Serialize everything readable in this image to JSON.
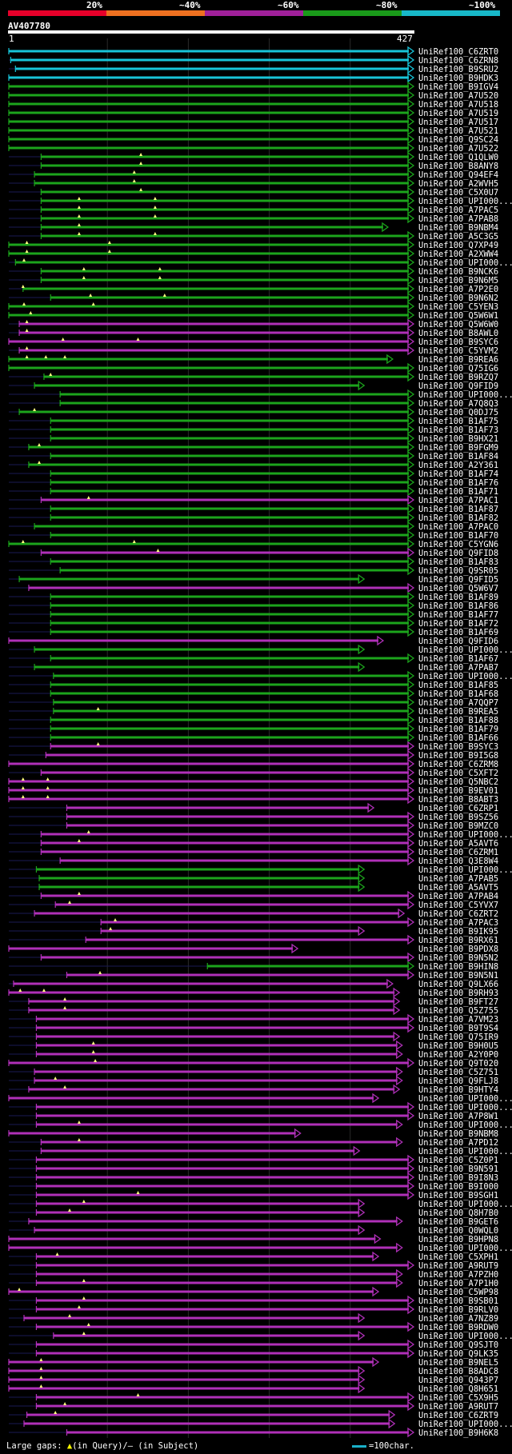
{
  "legend": [
    {
      "label": "20%",
      "color": "#e6002a"
    },
    {
      "label": "~40%",
      "color": "#ee7020"
    },
    {
      "label": "~60%",
      "color": "#a0209a"
    },
    {
      "label": "~80%",
      "color": "#1a9a1a"
    },
    {
      "label": "~100%",
      "color": "#18b8c8"
    }
  ],
  "query": {
    "name": "AV407780",
    "start": "1",
    "end": "427"
  },
  "colors": {
    "cyan": "#18c4d8",
    "green": "#1ca41c",
    "magenta": "#b030b8",
    "gap": "#1a1a55",
    "mark": "#ffff80"
  },
  "hits": [
    {
      "name": "UniRef100_C6ZRT0",
      "c": "cyan",
      "s": 1,
      "e": 427
    },
    {
      "name": "UniRef100_C6ZRN8",
      "c": "cyan",
      "s": 3,
      "e": 427
    },
    {
      "name": "UniRef100_B9SRU2",
      "c": "cyan",
      "s": 8,
      "e": 427
    },
    {
      "name": "UniRef100_B9HDK3",
      "c": "cyan",
      "s": 1,
      "e": 427
    },
    {
      "name": "UniRef100_B9IGV4",
      "c": "green",
      "s": 1,
      "e": 427
    },
    {
      "name": "UniRef100_A7U520",
      "c": "green",
      "s": 1,
      "e": 427
    },
    {
      "name": "UniRef100_A7U518",
      "c": "green",
      "s": 1,
      "e": 427
    },
    {
      "name": "UniRef100_A7U519",
      "c": "green",
      "s": 1,
      "e": 427
    },
    {
      "name": "UniRef100_A7U517",
      "c": "green",
      "s": 1,
      "e": 427
    },
    {
      "name": "UniRef100_A7U521",
      "c": "green",
      "s": 1,
      "e": 427
    },
    {
      "name": "UniRef100_Q9SC24",
      "c": "green",
      "s": 1,
      "e": 427
    },
    {
      "name": "UniRef100_A7U522",
      "c": "green",
      "s": 1,
      "e": 427
    },
    {
      "name": "UniRef100_Q1QLW0",
      "c": "green",
      "s": 35,
      "e": 427,
      "m": [
        140
      ]
    },
    {
      "name": "UniRef100_B8ANY8",
      "c": "green",
      "s": 35,
      "e": 427,
      "m": [
        140
      ]
    },
    {
      "name": "UniRef100_Q94EF4",
      "c": "green",
      "s": 28,
      "e": 427,
      "m": [
        133
      ]
    },
    {
      "name": "UniRef100_A2WVH5",
      "c": "green",
      "s": 28,
      "e": 427,
      "m": [
        133
      ]
    },
    {
      "name": "UniRef100_C5X0U7",
      "c": "green",
      "s": 35,
      "e": 427,
      "m": [
        140
      ]
    },
    {
      "name": "UniRef100_UPI000...",
      "c": "green",
      "s": 35,
      "e": 427,
      "m": [
        75,
        155
      ]
    },
    {
      "name": "UniRef100_A7PAC5",
      "c": "green",
      "s": 35,
      "e": 427,
      "m": [
        75,
        155
      ]
    },
    {
      "name": "UniRef100_A7PAB8",
      "c": "green",
      "s": 35,
      "e": 427,
      "m": [
        75,
        155
      ]
    },
    {
      "name": "UniRef100_B9NBM4",
      "c": "green",
      "s": 35,
      "e": 400,
      "m": [
        75
      ]
    },
    {
      "name": "UniRef100_A5C3G5",
      "c": "green",
      "s": 35,
      "e": 427,
      "m": [
        75,
        155
      ]
    },
    {
      "name": "UniRef100_Q7XP49",
      "c": "green",
      "s": 1,
      "e": 427,
      "m": [
        20,
        107
      ]
    },
    {
      "name": "UniRef100_A2XWW4",
      "c": "green",
      "s": 1,
      "e": 427,
      "m": [
        20,
        107
      ]
    },
    {
      "name": "UniRef100_UPI000...",
      "c": "green",
      "s": 8,
      "e": 427,
      "m": [
        17
      ]
    },
    {
      "name": "UniRef100_B9NCK6",
      "c": "green",
      "s": 35,
      "e": 427,
      "m": [
        80,
        160
      ]
    },
    {
      "name": "UniRef100_B9N6M5",
      "c": "green",
      "s": 35,
      "e": 427,
      "m": [
        80,
        160
      ]
    },
    {
      "name": "UniRef100_A7P2E0",
      "c": "green",
      "s": 16,
      "e": 427,
      "m": [
        16
      ]
    },
    {
      "name": "UniRef100_B9N6N2",
      "c": "green",
      "s": 45,
      "e": 427,
      "m": [
        87,
        165
      ]
    },
    {
      "name": "UniRef100_C5YEN3",
      "c": "green",
      "s": 1,
      "e": 427,
      "m": [
        17,
        90
      ]
    },
    {
      "name": "UniRef100_Q5W6W1",
      "c": "green",
      "s": 1,
      "e": 427,
      "m": [
        24
      ]
    },
    {
      "name": "UniRef100_Q5W6W0",
      "c": "magenta",
      "s": 12,
      "e": 427,
      "m": [
        20
      ]
    },
    {
      "name": "UniRef100_B8AWL0",
      "c": "magenta",
      "s": 12,
      "e": 427,
      "m": [
        20
      ]
    },
    {
      "name": "UniRef100_B9SYC6",
      "c": "magenta",
      "s": 1,
      "e": 427,
      "m": [
        58,
        137
      ]
    },
    {
      "name": "UniRef100_C5YVM2",
      "c": "magenta",
      "s": 12,
      "e": 427,
      "m": [
        20
      ]
    },
    {
      "name": "UniRef100_B9REA6",
      "c": "green",
      "s": 1,
      "e": 405,
      "m": [
        20,
        40,
        60
      ]
    },
    {
      "name": "UniRef100_Q75IG6",
      "c": "green",
      "s": 1,
      "e": 427
    },
    {
      "name": "UniRef100_B9RZQ7",
      "c": "green",
      "s": 38,
      "e": 427,
      "m": [
        45
      ]
    },
    {
      "name": "UniRef100_Q9FID9",
      "c": "green",
      "s": 28,
      "e": 375
    },
    {
      "name": "UniRef100_UPI000...",
      "c": "green",
      "s": 55,
      "e": 427
    },
    {
      "name": "UniRef100_A7Q8Q3",
      "c": "green",
      "s": 55,
      "e": 427
    },
    {
      "name": "UniRef100_Q0DJ75",
      "c": "green",
      "s": 12,
      "e": 427,
      "m": [
        28
      ]
    },
    {
      "name": "UniRef100_B1AF75",
      "c": "green",
      "s": 45,
      "e": 427
    },
    {
      "name": "UniRef100_B1AF73",
      "c": "green",
      "s": 45,
      "e": 427
    },
    {
      "name": "UniRef100_B9HX21",
      "c": "green",
      "s": 45,
      "e": 427
    },
    {
      "name": "UniRef100_B9FGM9",
      "c": "green",
      "s": 22,
      "e": 427,
      "m": [
        33
      ]
    },
    {
      "name": "UniRef100_B1AF84",
      "c": "green",
      "s": 45,
      "e": 427
    },
    {
      "name": "UniRef100_A2Y361",
      "c": "green",
      "s": 22,
      "e": 427,
      "m": [
        33
      ]
    },
    {
      "name": "UniRef100_B1AF74",
      "c": "green",
      "s": 45,
      "e": 427
    },
    {
      "name": "UniRef100_B1AF76",
      "c": "green",
      "s": 45,
      "e": 427
    },
    {
      "name": "UniRef100_B1AF71",
      "c": "green",
      "s": 45,
      "e": 427
    },
    {
      "name": "UniRef100_A7PAC1",
      "c": "magenta",
      "s": 35,
      "e": 427,
      "m": [
        85
      ]
    },
    {
      "name": "UniRef100_B1AF87",
      "c": "green",
      "s": 45,
      "e": 427
    },
    {
      "name": "UniRef100_B1AF82",
      "c": "green",
      "s": 45,
      "e": 427
    },
    {
      "name": "UniRef100_A7PAC0",
      "c": "green",
      "s": 28,
      "e": 427
    },
    {
      "name": "UniRef100_B1AF70",
      "c": "green",
      "s": 45,
      "e": 427
    },
    {
      "name": "UniRef100_C5YGN6",
      "c": "green",
      "s": 1,
      "e": 427,
      "m": [
        16,
        133
      ]
    },
    {
      "name": "UniRef100_Q9FID8",
      "c": "magenta",
      "s": 35,
      "e": 427,
      "m": [
        158
      ]
    },
    {
      "name": "UniRef100_B1AF83",
      "c": "green",
      "s": 45,
      "e": 427
    },
    {
      "name": "UniRef100_Q9SR05",
      "c": "green",
      "s": 55,
      "e": 427
    },
    {
      "name": "UniRef100_Q9FID5",
      "c": "green",
      "s": 12,
      "e": 375
    },
    {
      "name": "UniRef100_Q5W6V7",
      "c": "magenta",
      "s": 22,
      "e": 427
    },
    {
      "name": "UniRef100_B1AF89",
      "c": "green",
      "s": 45,
      "e": 427
    },
    {
      "name": "UniRef100_B1AF86",
      "c": "green",
      "s": 45,
      "e": 427
    },
    {
      "name": "UniRef100_B1AF77",
      "c": "green",
      "s": 45,
      "e": 427
    },
    {
      "name": "UniRef100_B1AF72",
      "c": "green",
      "s": 45,
      "e": 427
    },
    {
      "name": "UniRef100_B1AF69",
      "c": "green",
      "s": 45,
      "e": 427
    },
    {
      "name": "UniRef100_Q9FID6",
      "c": "magenta",
      "s": 1,
      "e": 395
    },
    {
      "name": "UniRef100_UPI000...",
      "c": "green",
      "s": 28,
      "e": 375
    },
    {
      "name": "UniRef100_B1AF67",
      "c": "green",
      "s": 45,
      "e": 427
    },
    {
      "name": "UniRef100_A7PAB7",
      "c": "green",
      "s": 28,
      "e": 375
    },
    {
      "name": "UniRef100_UPI000...",
      "c": "green",
      "s": 48,
      "e": 427
    },
    {
      "name": "UniRef100_B1AF85",
      "c": "green",
      "s": 45,
      "e": 427
    },
    {
      "name": "UniRef100_B1AF68",
      "c": "green",
      "s": 45,
      "e": 427
    },
    {
      "name": "UniRef100_A7QQP7",
      "c": "green",
      "s": 48,
      "e": 427
    },
    {
      "name": "UniRef100_B9REA5",
      "c": "green",
      "s": 48,
      "e": 427,
      "m": [
        95
      ]
    },
    {
      "name": "UniRef100_B1AF88",
      "c": "green",
      "s": 45,
      "e": 427
    },
    {
      "name": "UniRef100_B1AF79",
      "c": "green",
      "s": 45,
      "e": 427
    },
    {
      "name": "UniRef100_B1AF66",
      "c": "green",
      "s": 45,
      "e": 427
    },
    {
      "name": "UniRef100_B9SYC3",
      "c": "magenta",
      "s": 45,
      "e": 427,
      "m": [
        95
      ]
    },
    {
      "name": "UniRef100_B9I5G8",
      "c": "magenta",
      "s": 40,
      "e": 427
    },
    {
      "name": "UniRef100_C6ZRM8",
      "c": "magenta",
      "s": 1,
      "e": 427
    },
    {
      "name": "UniRef100_C5XFT2",
      "c": "magenta",
      "s": 35,
      "e": 427
    },
    {
      "name": "UniRef100_Q5NBC2",
      "c": "magenta",
      "s": 1,
      "e": 427,
      "m": [
        16,
        42
      ]
    },
    {
      "name": "UniRef100_B9EV01",
      "c": "magenta",
      "s": 1,
      "e": 427,
      "m": [
        16,
        42
      ]
    },
    {
      "name": "UniRef100_B8ABT3",
      "c": "magenta",
      "s": 1,
      "e": 427,
      "m": [
        16,
        42
      ]
    },
    {
      "name": "UniRef100_C6ZRP1",
      "c": "magenta",
      "s": 62,
      "e": 385
    },
    {
      "name": "UniRef100_B9SZ56",
      "c": "magenta",
      "s": 62,
      "e": 427
    },
    {
      "name": "UniRef100_B9MZC0",
      "c": "magenta",
      "s": 62,
      "e": 427
    },
    {
      "name": "UniRef100_UPI000...",
      "c": "magenta",
      "s": 35,
      "e": 427,
      "m": [
        85
      ]
    },
    {
      "name": "UniRef100_A5AVT6",
      "c": "magenta",
      "s": 35,
      "e": 427,
      "m": [
        75
      ]
    },
    {
      "name": "UniRef100_C6ZRM1",
      "c": "magenta",
      "s": 35,
      "e": 427
    },
    {
      "name": "UniRef100_Q3E8W4",
      "c": "magenta",
      "s": 55,
      "e": 427
    },
    {
      "name": "UniRef100_UPI000...",
      "c": "green",
      "s": 30,
      "e": 375
    },
    {
      "name": "UniRef100_A7PAB5",
      "c": "green",
      "s": 33,
      "e": 375
    },
    {
      "name": "UniRef100_A5AVT5",
      "c": "green",
      "s": 33,
      "e": 375
    },
    {
      "name": "UniRef100_A7PAB4",
      "c": "magenta",
      "s": 35,
      "e": 427,
      "m": [
        75
      ]
    },
    {
      "name": "UniRef100_C5YVX7",
      "c": "magenta",
      "s": 50,
      "e": 427,
      "m": [
        65
      ]
    },
    {
      "name": "UniRef100_C6ZRT2",
      "c": "magenta",
      "s": 28,
      "e": 417
    },
    {
      "name": "UniRef100_A7PAC3",
      "c": "magenta",
      "s": 98,
      "e": 427,
      "m": [
        113
      ]
    },
    {
      "name": "UniRef100_B9IK95",
      "c": "magenta",
      "s": 98,
      "e": 375,
      "m": [
        108
      ]
    },
    {
      "name": "UniRef100_B9RX61",
      "c": "magenta",
      "s": 82,
      "e": 427
    },
    {
      "name": "UniRef100_B9PDX8",
      "c": "magenta",
      "s": 1,
      "e": 305
    },
    {
      "name": "UniRef100_B9N5N2",
      "c": "magenta",
      "s": 35,
      "e": 427
    },
    {
      "name": "UniRef100_B9HIN8",
      "c": "green",
      "s": 210,
      "e": 427
    },
    {
      "name": "UniRef100_B9N5N1",
      "c": "magenta",
      "s": 62,
      "e": 427,
      "m": [
        97
      ]
    },
    {
      "name": "UniRef100_Q9LX66",
      "c": "magenta",
      "s": 6,
      "e": 405
    },
    {
      "name": "UniRef100_B9RH93",
      "c": "magenta",
      "s": 1,
      "e": 412,
      "m": [
        13,
        38
      ]
    },
    {
      "name": "UniRef100_B9FT27",
      "c": "magenta",
      "s": 22,
      "e": 412,
      "m": [
        60
      ]
    },
    {
      "name": "UniRef100_Q5Z755",
      "c": "magenta",
      "s": 22,
      "e": 412,
      "m": [
        60
      ]
    },
    {
      "name": "UniRef100_A7VM23",
      "c": "magenta",
      "s": 30,
      "e": 427
    },
    {
      "name": "UniRef100_B9T9S4",
      "c": "magenta",
      "s": 30,
      "e": 427
    },
    {
      "name": "UniRef100_Q75IR9",
      "c": "magenta",
      "s": 30,
      "e": 412
    },
    {
      "name": "UniRef100_B9H0U5",
      "c": "magenta",
      "s": 30,
      "e": 415,
      "m": [
        90
      ]
    },
    {
      "name": "UniRef100_A2Y0P0",
      "c": "magenta",
      "s": 30,
      "e": 415,
      "m": [
        90
      ]
    },
    {
      "name": "UniRef100_Q9T020",
      "c": "magenta",
      "s": 1,
      "e": 427,
      "m": [
        92
      ]
    },
    {
      "name": "UniRef100_C5Z751",
      "c": "magenta",
      "s": 28,
      "e": 415
    },
    {
      "name": "UniRef100_Q9FLJ8",
      "c": "magenta",
      "s": 28,
      "e": 415,
      "m": [
        50
      ]
    },
    {
      "name": "UniRef100_B9HTY4",
      "c": "magenta",
      "s": 22,
      "e": 412,
      "m": [
        60
      ]
    },
    {
      "name": "UniRef100_UPI000...",
      "c": "magenta",
      "s": 1,
      "e": 390
    },
    {
      "name": "UniRef100_UPI000...",
      "c": "magenta",
      "s": 30,
      "e": 427
    },
    {
      "name": "UniRef100_A7P8W1",
      "c": "magenta",
      "s": 30,
      "e": 427
    },
    {
      "name": "UniRef100_UPI000...",
      "c": "magenta",
      "s": 30,
      "e": 415,
      "m": [
        75
      ]
    },
    {
      "name": "UniRef100_B9NBM8",
      "c": "magenta",
      "s": 1,
      "e": 308
    },
    {
      "name": "UniRef100_A7PD12",
      "c": "magenta",
      "s": 35,
      "e": 415,
      "m": [
        75
      ]
    },
    {
      "name": "UniRef100_UPI000...",
      "c": "magenta",
      "s": 35,
      "e": 370
    },
    {
      "name": "UniRef100_C5Z0P1",
      "c": "magenta",
      "s": 30,
      "e": 427
    },
    {
      "name": "UniRef100_B9N591",
      "c": "magenta",
      "s": 30,
      "e": 427
    },
    {
      "name": "UniRef100_B9I8N3",
      "c": "magenta",
      "s": 30,
      "e": 427
    },
    {
      "name": "UniRef100_B9I000",
      "c": "magenta",
      "s": 30,
      "e": 427
    },
    {
      "name": "UniRef100_B9SGH1",
      "c": "magenta",
      "s": 30,
      "e": 427,
      "m": [
        137
      ]
    },
    {
      "name": "UniRef100_UPI000...",
      "c": "magenta",
      "s": 30,
      "e": 375,
      "m": [
        80
      ]
    },
    {
      "name": "UniRef100_Q8H7B0",
      "c": "magenta",
      "s": 30,
      "e": 375,
      "m": [
        65
      ]
    },
    {
      "name": "UniRef100_B9GET6",
      "c": "magenta",
      "s": 22,
      "e": 415
    },
    {
      "name": "UniRef100_Q0WQL0",
      "c": "magenta",
      "s": 28,
      "e": 375
    },
    {
      "name": "UniRef100_B9HPN8",
      "c": "magenta",
      "s": 1,
      "e": 392
    },
    {
      "name": "UniRef100_UPI000...",
      "c": "magenta",
      "s": 1,
      "e": 415
    },
    {
      "name": "UniRef100_C5XPH1",
      "c": "magenta",
      "s": 30,
      "e": 390,
      "m": [
        52
      ]
    },
    {
      "name": "UniRef100_A9RUT9",
      "c": "magenta",
      "s": 30,
      "e": 427
    },
    {
      "name": "UniRef100_A7PZH0",
      "c": "magenta",
      "s": 30,
      "e": 415
    },
    {
      "name": "UniRef100_A7P1H0",
      "c": "magenta",
      "s": 30,
      "e": 415,
      "m": [
        80
      ]
    },
    {
      "name": "UniRef100_C5WP98",
      "c": "magenta",
      "s": 1,
      "e": 390,
      "m": [
        12
      ]
    },
    {
      "name": "UniRef100_B9SB01",
      "c": "magenta",
      "s": 30,
      "e": 427,
      "m": [
        80
      ]
    },
    {
      "name": "UniRef100_B9RLV0",
      "c": "magenta",
      "s": 30,
      "e": 427,
      "m": [
        75
      ]
    },
    {
      "name": "UniRef100_A7NZ89",
      "c": "magenta",
      "s": 17,
      "e": 375,
      "m": [
        65
      ]
    },
    {
      "name": "UniRef100_B9RDW0",
      "c": "magenta",
      "s": 30,
      "e": 427,
      "m": [
        85
      ]
    },
    {
      "name": "UniRef100_UPI000...",
      "c": "magenta",
      "s": 48,
      "e": 375,
      "m": [
        80
      ]
    },
    {
      "name": "UniRef100_Q9SJT0",
      "c": "magenta",
      "s": 30,
      "e": 427
    },
    {
      "name": "UniRef100_Q9LK35",
      "c": "magenta",
      "s": 30,
      "e": 427
    },
    {
      "name": "UniRef100_B9NEL5",
      "c": "magenta",
      "s": 1,
      "e": 390,
      "m": [
        35
      ]
    },
    {
      "name": "UniRef100_B8ADC8",
      "c": "magenta",
      "s": 1,
      "e": 375,
      "m": [
        35
      ]
    },
    {
      "name": "UniRef100_Q943P7",
      "c": "magenta",
      "s": 1,
      "e": 375,
      "m": [
        35
      ]
    },
    {
      "name": "UniRef100_Q8H651",
      "c": "magenta",
      "s": 1,
      "e": 375,
      "m": [
        35
      ]
    },
    {
      "name": "UniRef100_C5X9H5",
      "c": "magenta",
      "s": 30,
      "e": 427,
      "m": [
        137
      ]
    },
    {
      "name": "UniRef100_A9RUT7",
      "c": "magenta",
      "s": 30,
      "e": 427,
      "m": [
        60
      ]
    },
    {
      "name": "UniRef100_C6ZRT9",
      "c": "magenta",
      "s": 20,
      "e": 407,
      "m": [
        50
      ]
    },
    {
      "name": "UniRef100_UPI000...",
      "c": "magenta",
      "s": 17,
      "e": 407
    },
    {
      "name": "UniRef100_B9H6K8",
      "c": "magenta",
      "s": 62,
      "e": 427
    }
  ],
  "footer": {
    "prefix": "Large gaps: ",
    "q_sym": "▲",
    "q_text": "(in Query)/",
    "s_sym": "–",
    "s_text": " (in Subject)",
    "scale_text": "=100char."
  }
}
